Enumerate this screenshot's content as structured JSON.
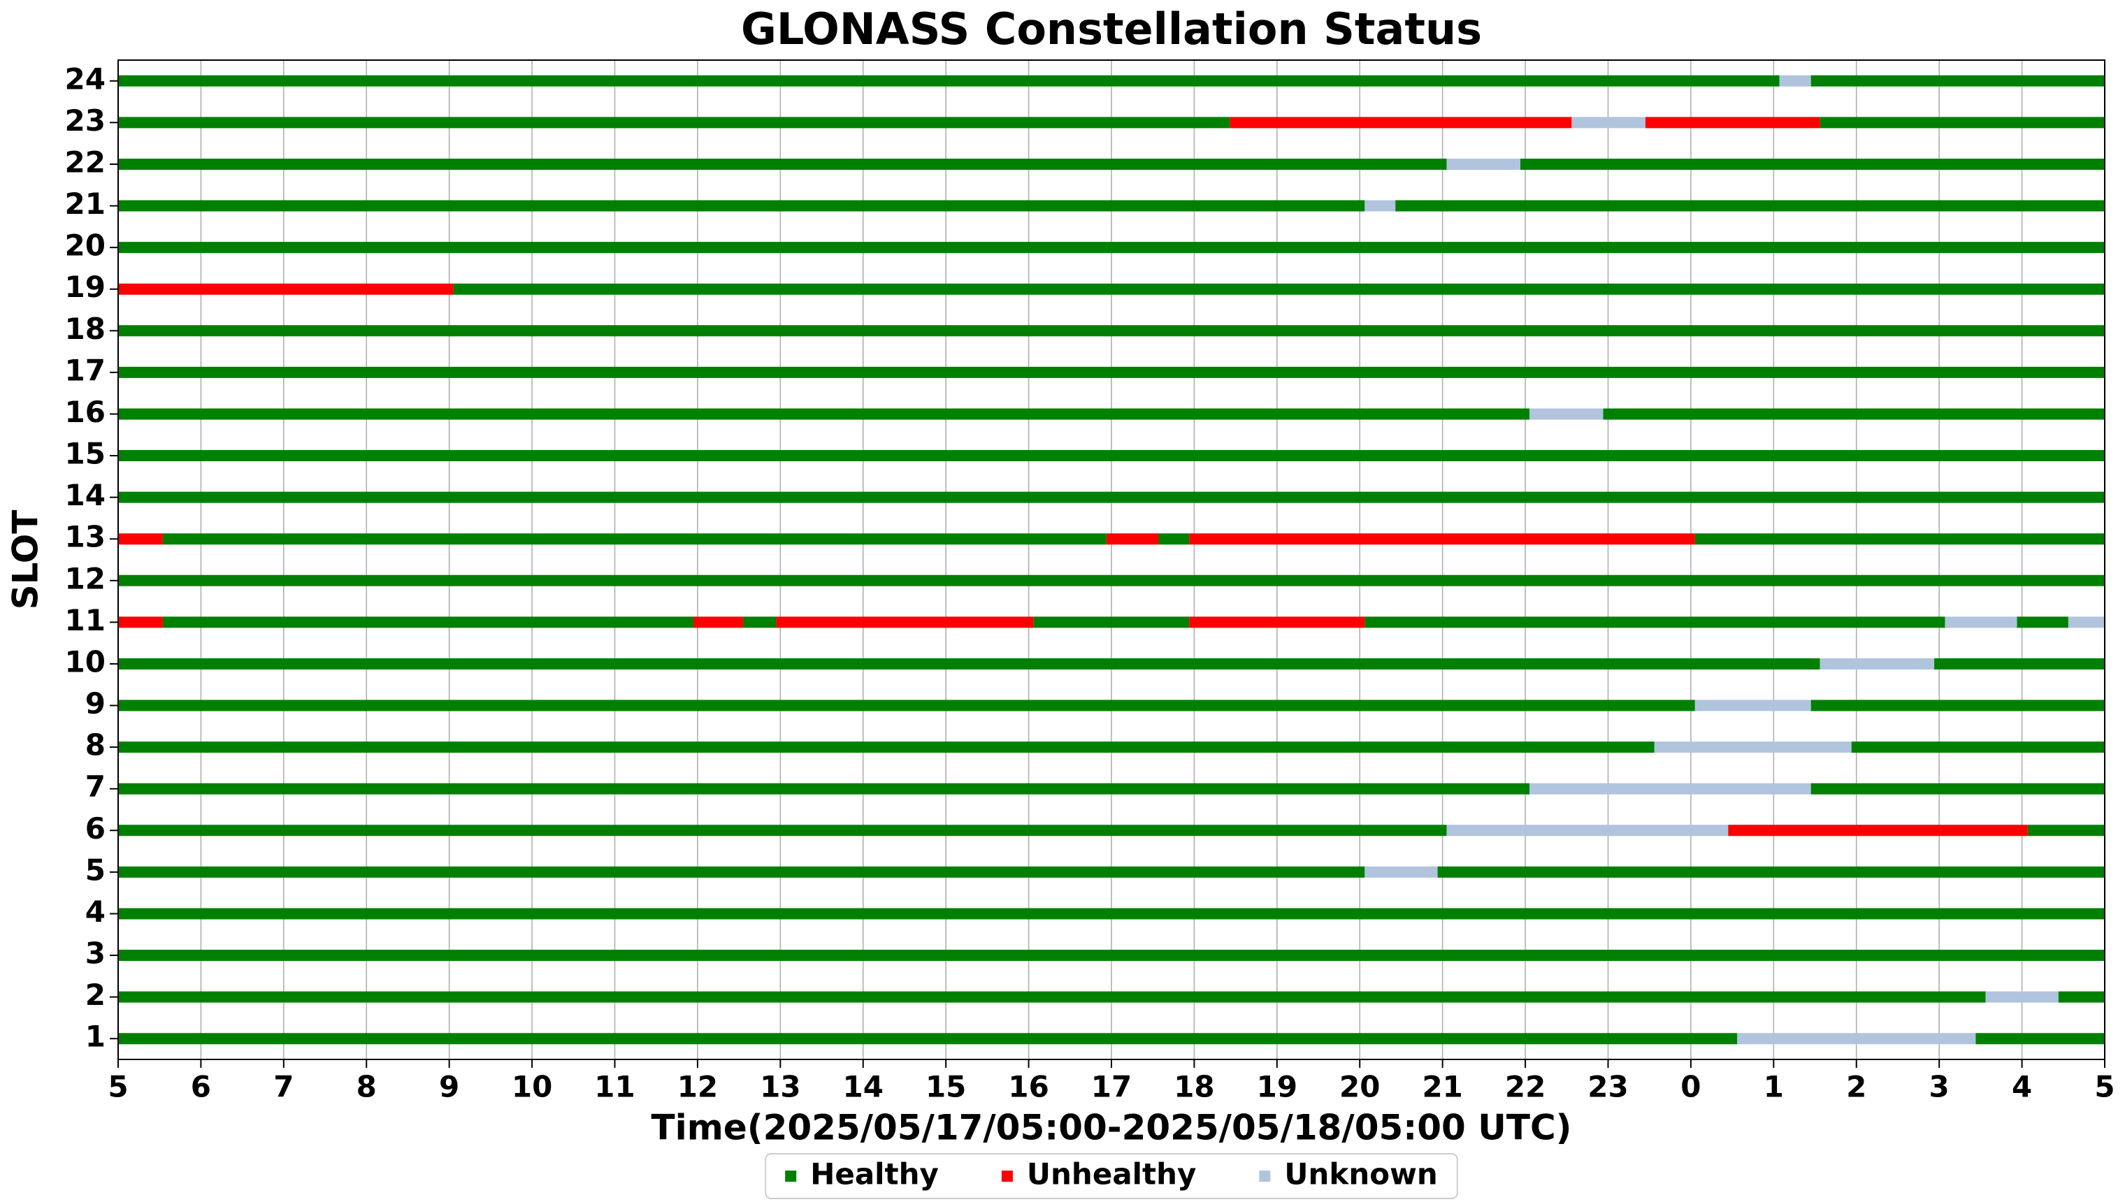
{
  "chart_data": {
    "type": "timeline",
    "title": "GLONASS Constellation Status",
    "xlabel": "Time(2025/05/17/05:00-2025/05/18/05:00 UTC)",
    "ylabel": "SLOT",
    "xlim": [
      0,
      24
    ],
    "xticks": [
      {
        "value": 0,
        "label": "5"
      },
      {
        "value": 1,
        "label": "6"
      },
      {
        "value": 2,
        "label": "7"
      },
      {
        "value": 3,
        "label": "8"
      },
      {
        "value": 4,
        "label": "9"
      },
      {
        "value": 5,
        "label": "10"
      },
      {
        "value": 6,
        "label": "11"
      },
      {
        "value": 7,
        "label": "12"
      },
      {
        "value": 8,
        "label": "13"
      },
      {
        "value": 9,
        "label": "14"
      },
      {
        "value": 10,
        "label": "15"
      },
      {
        "value": 11,
        "label": "16"
      },
      {
        "value": 12,
        "label": "17"
      },
      {
        "value": 13,
        "label": "18"
      },
      {
        "value": 14,
        "label": "19"
      },
      {
        "value": 15,
        "label": "20"
      },
      {
        "value": 16,
        "label": "21"
      },
      {
        "value": 17,
        "label": "22"
      },
      {
        "value": 18,
        "label": "23"
      },
      {
        "value": 19,
        "label": "0"
      },
      {
        "value": 20,
        "label": "1"
      },
      {
        "value": 21,
        "label": "2"
      },
      {
        "value": 22,
        "label": "3"
      },
      {
        "value": 23,
        "label": "4"
      },
      {
        "value": 24,
        "label": "5"
      }
    ],
    "ylim": [
      0.5,
      24.5
    ],
    "yticks": [
      1,
      2,
      3,
      4,
      5,
      6,
      7,
      8,
      9,
      10,
      11,
      12,
      13,
      14,
      15,
      16,
      17,
      18,
      19,
      20,
      21,
      22,
      23,
      24
    ],
    "grid": true,
    "legend": "bottom",
    "series": [
      {
        "name": "Healthy",
        "color": "#008000",
        "segments": [
          {
            "y": 24,
            "x": [
              0,
              20.07
            ]
          },
          {
            "y": 24,
            "x": [
              20.45,
              24
            ]
          },
          {
            "y": 23,
            "x": [
              0,
              13.43
            ]
          },
          {
            "y": 23,
            "x": [
              20.56,
              24
            ]
          },
          {
            "y": 22,
            "x": [
              0,
              16.05
            ]
          },
          {
            "y": 22,
            "x": [
              16.94,
              24
            ]
          },
          {
            "y": 21,
            "x": [
              0,
              15.06
            ]
          },
          {
            "y": 21,
            "x": [
              15.43,
              24
            ]
          },
          {
            "y": 20,
            "x": [
              0,
              24
            ]
          },
          {
            "y": 19,
            "x": [
              4.05,
              24
            ]
          },
          {
            "y": 18,
            "x": [
              0,
              24
            ]
          },
          {
            "y": 17,
            "x": [
              0,
              24
            ]
          },
          {
            "y": 16,
            "x": [
              0,
              17.05
            ]
          },
          {
            "y": 16,
            "x": [
              17.94,
              24
            ]
          },
          {
            "y": 15,
            "x": [
              0,
              24
            ]
          },
          {
            "y": 14,
            "x": [
              0,
              24
            ]
          },
          {
            "y": 13,
            "x": [
              0.54,
              11.94
            ]
          },
          {
            "y": 13,
            "x": [
              12.57,
              12.94
            ]
          },
          {
            "y": 13,
            "x": [
              19.05,
              24
            ]
          },
          {
            "y": 12,
            "x": [
              0,
              24
            ]
          },
          {
            "y": 11,
            "x": [
              0.54,
              6.95
            ]
          },
          {
            "y": 11,
            "x": [
              7.55,
              7.95
            ]
          },
          {
            "y": 11,
            "x": [
              11.06,
              12.94
            ]
          },
          {
            "y": 11,
            "x": [
              15.06,
              22.07
            ]
          },
          {
            "y": 11,
            "x": [
              22.94,
              23.56
            ]
          },
          {
            "y": 10,
            "x": [
              0,
              20.56
            ]
          },
          {
            "y": 10,
            "x": [
              21.94,
              24
            ]
          },
          {
            "y": 9,
            "x": [
              0,
              19.05
            ]
          },
          {
            "y": 9,
            "x": [
              20.45,
              24
            ]
          },
          {
            "y": 8,
            "x": [
              0,
              18.56
            ]
          },
          {
            "y": 8,
            "x": [
              20.94,
              24
            ]
          },
          {
            "y": 7,
            "x": [
              0,
              17.05
            ]
          },
          {
            "y": 7,
            "x": [
              20.45,
              24
            ]
          },
          {
            "y": 6,
            "x": [
              0,
              16.05
            ]
          },
          {
            "y": 6,
            "x": [
              23.07,
              24
            ]
          },
          {
            "y": 5,
            "x": [
              0,
              15.06
            ]
          },
          {
            "y": 5,
            "x": [
              15.94,
              24
            ]
          },
          {
            "y": 4,
            "x": [
              0,
              24
            ]
          },
          {
            "y": 3,
            "x": [
              0,
              24
            ]
          },
          {
            "y": 2,
            "x": [
              0,
              22.56
            ]
          },
          {
            "y": 2,
            "x": [
              23.44,
              24
            ]
          },
          {
            "y": 1,
            "x": [
              0,
              19.56
            ]
          },
          {
            "y": 1,
            "x": [
              22.44,
              24
            ]
          }
        ]
      },
      {
        "name": "Unhealthy",
        "color": "#ff0000",
        "segments": [
          {
            "y": 23,
            "x": [
              13.43,
              17.56
            ]
          },
          {
            "y": 23,
            "x": [
              18.45,
              20.56
            ]
          },
          {
            "y": 19,
            "x": [
              0,
              4.05
            ]
          },
          {
            "y": 13,
            "x": [
              0,
              0.54
            ]
          },
          {
            "y": 13,
            "x": [
              11.94,
              12.57
            ]
          },
          {
            "y": 13,
            "x": [
              12.94,
              19.05
            ]
          },
          {
            "y": 11,
            "x": [
              0,
              0.54
            ]
          },
          {
            "y": 11,
            "x": [
              6.95,
              7.55
            ]
          },
          {
            "y": 11,
            "x": [
              7.95,
              11.06
            ]
          },
          {
            "y": 11,
            "x": [
              12.94,
              15.06
            ]
          },
          {
            "y": 6,
            "x": [
              19.45,
              23.07
            ]
          }
        ]
      },
      {
        "name": "Unknown",
        "color": "#b0c4de",
        "segments": [
          {
            "y": 24,
            "x": [
              20.07,
              20.45
            ]
          },
          {
            "y": 23,
            "x": [
              17.56,
              18.45
            ]
          },
          {
            "y": 22,
            "x": [
              16.05,
              16.94
            ]
          },
          {
            "y": 21,
            "x": [
              15.06,
              15.43
            ]
          },
          {
            "y": 16,
            "x": [
              17.05,
              17.94
            ]
          },
          {
            "y": 11,
            "x": [
              22.07,
              22.94
            ]
          },
          {
            "y": 11,
            "x": [
              23.56,
              24
            ]
          },
          {
            "y": 10,
            "x": [
              20.56,
              21.94
            ]
          },
          {
            "y": 9,
            "x": [
              19.05,
              20.45
            ]
          },
          {
            "y": 8,
            "x": [
              18.56,
              20.94
            ]
          },
          {
            "y": 7,
            "x": [
              17.05,
              20.45
            ]
          },
          {
            "y": 6,
            "x": [
              16.05,
              19.45
            ]
          },
          {
            "y": 5,
            "x": [
              15.06,
              15.94
            ]
          },
          {
            "y": 2,
            "x": [
              22.56,
              23.44
            ]
          },
          {
            "y": 1,
            "x": [
              19.56,
              22.44
            ]
          }
        ]
      }
    ]
  }
}
